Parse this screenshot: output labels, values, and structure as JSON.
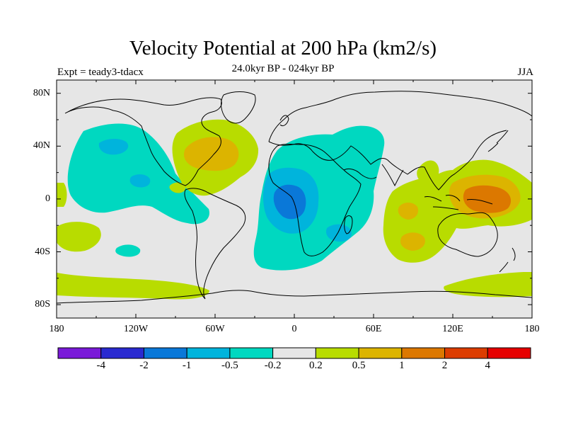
{
  "title": "Velocity Potential at 200 hPa (km2/s)",
  "subtitle": "24.0kyr BP - 024kyr BP",
  "experiment_label": "Expt = teady3-tdacx",
  "season": "JJA",
  "map": {
    "lon_ticks": [
      "180",
      "120W",
      "60W",
      "0",
      "60E",
      "120E",
      "180"
    ],
    "lat_ticks": [
      "80N",
      "40N",
      "0",
      "40S",
      "80S"
    ],
    "background_color": "#e6e6e6"
  },
  "colorbar": {
    "labels": [
      "-4",
      "-2",
      "-1",
      "-0.5",
      "-0.2",
      "0.2",
      "0.5",
      "1",
      "2",
      "4"
    ],
    "colors": [
      "#7a1ad8",
      "#2a2ad0",
      "#0a78d8",
      "#00b4dc",
      "#00d8c0",
      "#e6e6e6",
      "#b8dc00",
      "#dcb400",
      "#dc7800",
      "#dc3c00",
      "#e60000"
    ]
  },
  "field_colors": {
    "neg_0_2": "#00d8c0",
    "neg_0_5": "#00b4dc",
    "neg_1": "#0a78d8",
    "pos_0_2": "#b8dc00",
    "pos_0_5": "#dcb400",
    "pos_1": "#dc7800"
  }
}
